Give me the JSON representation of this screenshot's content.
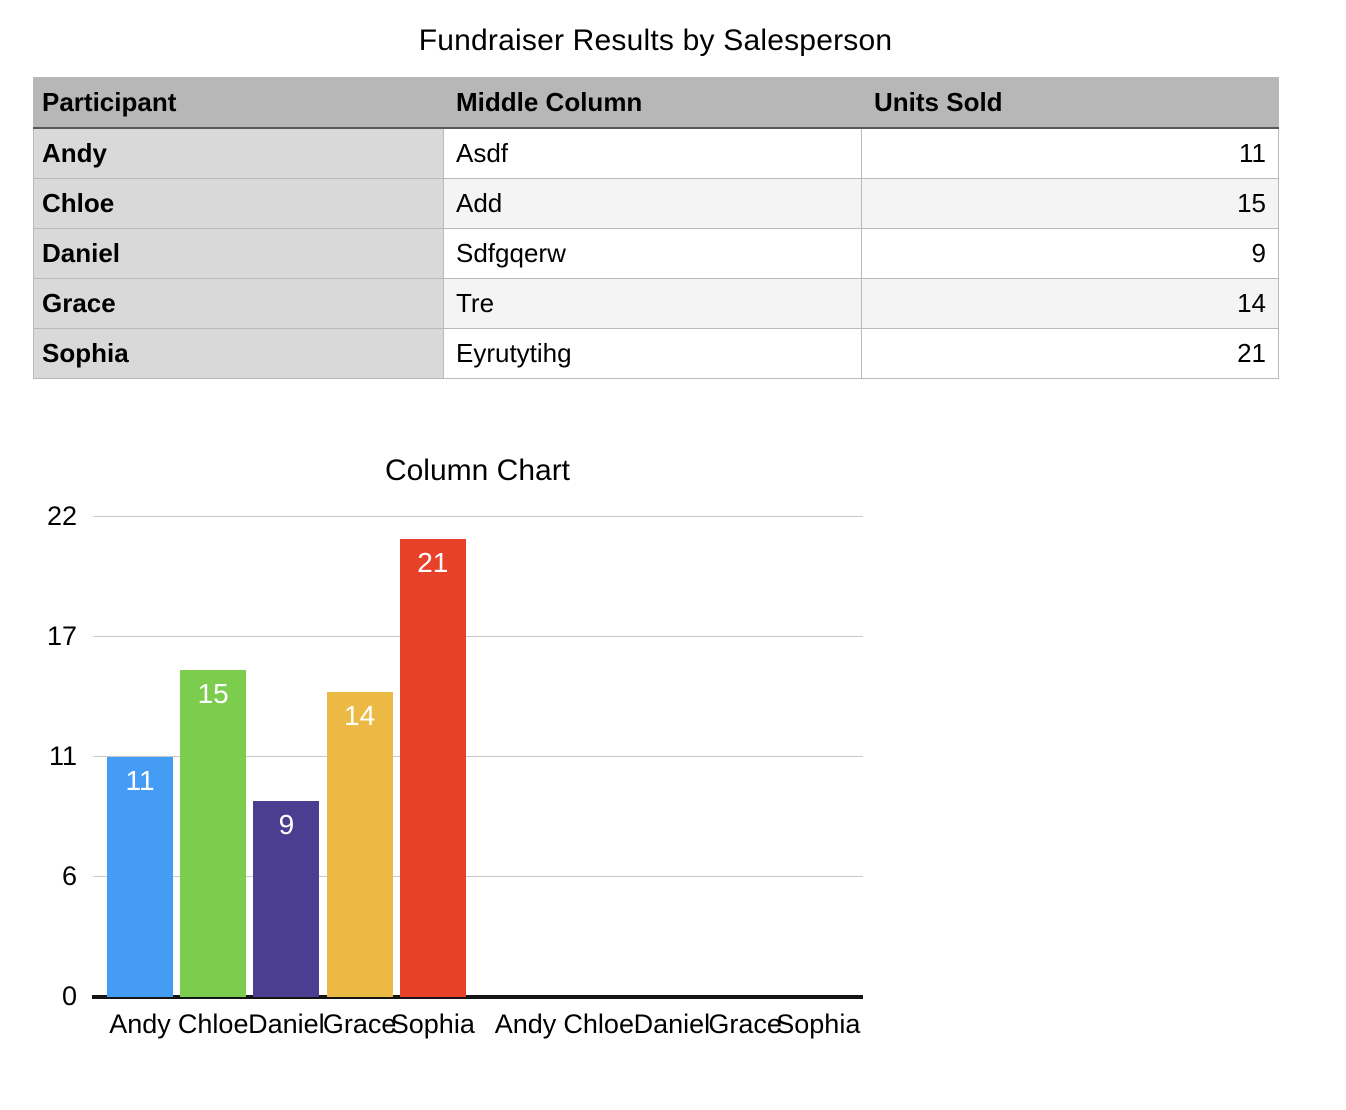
{
  "table": {
    "title": "Fundraiser Results by Salesperson",
    "columns": [
      "Participant",
      "Middle Column",
      "Units Sold"
    ],
    "rows": [
      [
        "Andy",
        "Asdf",
        "11"
      ],
      [
        "Chloe",
        "Add",
        "15"
      ],
      [
        "Daniel",
        "Sdfgqerw",
        "9"
      ],
      [
        "Grace",
        "Tre",
        "14"
      ],
      [
        "Sophia",
        "Eyrutytihg",
        "21"
      ]
    ]
  },
  "chart_data": {
    "type": "bar",
    "title": "Column Chart",
    "categories": [
      "Andy",
      "Chloe",
      "Daniel",
      "Grace",
      "Sophia"
    ],
    "values": [
      11,
      15,
      9,
      14,
      21
    ],
    "bar_colors": [
      "#449CF4",
      "#7CCC4E",
      "#4B3D90",
      "#ECBA44",
      "#E74229"
    ],
    "value_label_color": "#ffffff",
    "xlabel": "",
    "ylabel": "",
    "y_tick_labels": [
      "22",
      "17",
      "11",
      "6",
      "0"
    ],
    "ylim": [
      0,
      22
    ],
    "grid": true,
    "legend_position": "none",
    "x_label_groups": [
      [
        "Andy",
        "Chloe",
        "Daniel",
        "Grace",
        "Sophia"
      ],
      [
        "Andy",
        "Chloe",
        "Daniel",
        "Grace",
        "Sophia"
      ]
    ],
    "colors": {
      "gridline": "#c8c8c8",
      "axis": "#141414"
    }
  }
}
